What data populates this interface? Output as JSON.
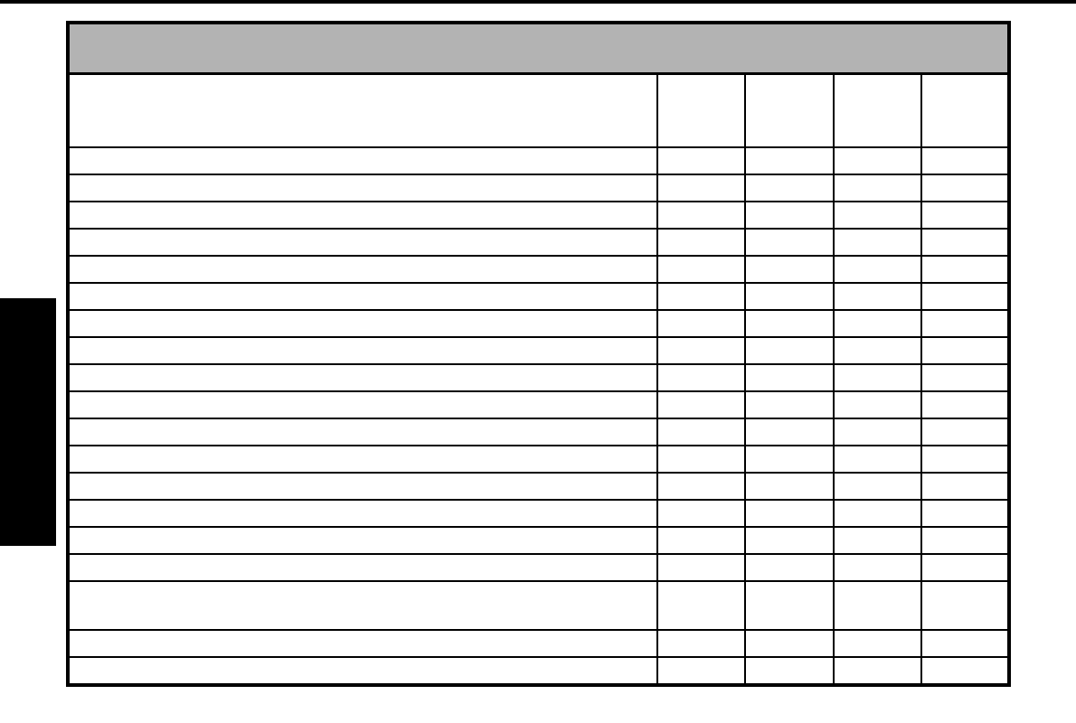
{
  "page": {
    "background_color": "#ffffff"
  },
  "decorations": {
    "top_rule_color": "#000000",
    "side_tab_color": "#000000"
  },
  "table": {
    "border_color": "#000000",
    "title_band_fill": "#b3b3b3",
    "title": "",
    "header": {
      "label_column": "",
      "value_columns": [
        "",
        "",
        "",
        ""
      ]
    },
    "rows": [
      {
        "label": "",
        "cells": [
          "",
          "",
          "",
          ""
        ]
      },
      {
        "label": "",
        "cells": [
          "",
          "",
          "",
          ""
        ]
      },
      {
        "label": "",
        "cells": [
          "",
          "",
          "",
          ""
        ]
      },
      {
        "label": "",
        "cells": [
          "",
          "",
          "",
          ""
        ]
      },
      {
        "label": "",
        "cells": [
          "",
          "",
          "",
          ""
        ]
      },
      {
        "label": "",
        "cells": [
          "",
          "",
          "",
          ""
        ]
      },
      {
        "label": "",
        "cells": [
          "",
          "",
          "",
          ""
        ]
      },
      {
        "label": "",
        "cells": [
          "",
          "",
          "",
          ""
        ]
      },
      {
        "label": "",
        "cells": [
          "",
          "",
          "",
          ""
        ]
      },
      {
        "label": "",
        "cells": [
          "",
          "",
          "",
          ""
        ]
      },
      {
        "label": "",
        "cells": [
          "",
          "",
          "",
          ""
        ]
      },
      {
        "label": "",
        "cells": [
          "",
          "",
          "",
          ""
        ]
      },
      {
        "label": "",
        "cells": [
          "",
          "",
          "",
          ""
        ]
      },
      {
        "label": "",
        "cells": [
          "",
          "",
          "",
          ""
        ]
      },
      {
        "label": "",
        "cells": [
          "",
          "",
          "",
          ""
        ]
      },
      {
        "label": "",
        "cells": [
          "",
          "",
          "",
          ""
        ]
      },
      {
        "label": "",
        "cells": [
          "",
          "",
          "",
          ""
        ]
      },
      {
        "label": "",
        "cells": [
          "",
          "",
          "",
          ""
        ]
      },
      {
        "label": "",
        "cells": [
          "",
          "",
          "",
          ""
        ]
      }
    ]
  }
}
